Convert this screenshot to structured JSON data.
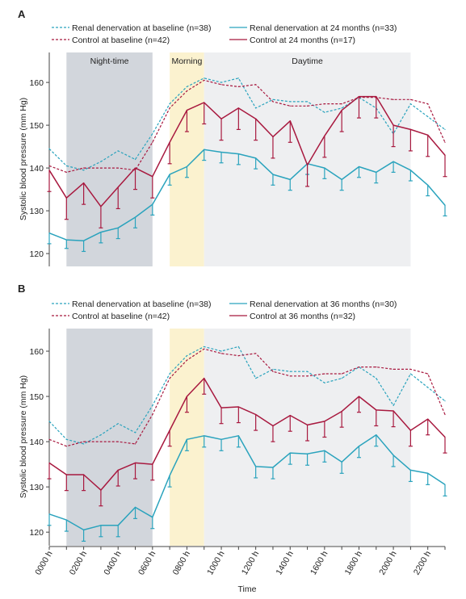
{
  "figure": {
    "xlabel": "Time",
    "x_ticks": [
      "0000 h",
      "0200 h",
      "0400 h",
      "0600 h",
      "0800 h",
      "1000 h",
      "1200 h",
      "1400 h",
      "1600 h",
      "1800 h",
      "2000 h",
      "2200 h"
    ]
  },
  "colors": {
    "denervation": "#2aa3bd",
    "control": "#a8193f",
    "night_shade": "#d2d6dc",
    "morning_shade": "#fbf2cf",
    "day_shade": "#eeeff1"
  },
  "chart_data": [
    {
      "panel": "A",
      "type": "line",
      "ylabel": "Systolic blood pressure (mm Hg)",
      "ylim": [
        117,
        167
      ],
      "y_ticks": [
        120,
        130,
        140,
        150,
        160
      ],
      "x_hours": [
        0,
        1,
        2,
        3,
        4,
        5,
        6,
        7,
        8,
        9,
        10,
        11,
        12,
        13,
        14,
        15,
        16,
        17,
        18,
        19,
        20,
        21,
        22,
        23
      ],
      "periods": [
        {
          "label": "Night-time",
          "start": 1,
          "end": 6
        },
        {
          "label": "Morning",
          "start": 7,
          "end": 9
        },
        {
          "label": "Daytime",
          "start": 9,
          "end": 21
        }
      ],
      "legend": [
        {
          "label": "Renal denervation at baseline (n=38)",
          "color": "#2aa3bd",
          "style": "dashed"
        },
        {
          "label": "Control at baseline (n=42)",
          "color": "#a8193f",
          "style": "dashed"
        },
        {
          "label": "Renal denervation at 24 months (n=33)",
          "color": "#2aa3bd",
          "style": "solid"
        },
        {
          "label": "Control at 24 months (n=17)",
          "color": "#a8193f",
          "style": "solid"
        }
      ],
      "series": [
        {
          "name": "Renal denervation at baseline (n=38)",
          "color": "#2aa3bd",
          "style": "dashed",
          "values": [
            144.5,
            140.5,
            139.5,
            141.5,
            144,
            142,
            148,
            155,
            159,
            161,
            160,
            161,
            154,
            156,
            155.5,
            155.5,
            153,
            154,
            156.5,
            154,
            148,
            155,
            152,
            149
          ]
        },
        {
          "name": "Control at baseline (n=42)",
          "color": "#a8193f",
          "style": "dashed",
          "values": [
            140.5,
            139,
            140,
            140,
            140,
            139.5,
            146,
            154,
            158,
            160.5,
            159.5,
            159,
            159.5,
            155.5,
            154.5,
            154.5,
            155,
            155,
            156.5,
            156.5,
            156,
            156,
            155,
            146
          ]
        },
        {
          "name": "Renal denervation at 24 months (n=33)",
          "color": "#2aa3bd",
          "style": "solid",
          "values": [
            124.8,
            123.2,
            123,
            125,
            126,
            128.5,
            131.5,
            138.5,
            140.3,
            144.3,
            143.7,
            143.3,
            142.3,
            138.5,
            137.3,
            141,
            140,
            137.3,
            140.3,
            139,
            141.5,
            139.5,
            136,
            131.3
          ],
          "error_down": [
            2.5,
            2,
            2.5,
            2.5,
            2.5,
            2.5,
            2.5,
            2.5,
            2.5,
            2.5,
            2.5,
            2.5,
            2.5,
            2.5,
            2.5,
            2.5,
            2.5,
            2.5,
            2.5,
            2.5,
            2.5,
            2.5,
            2.5,
            2.5
          ]
        },
        {
          "name": "Control at 24 months (n=17)",
          "color": "#a8193f",
          "style": "solid",
          "values": [
            139.5,
            133,
            136.5,
            131,
            135.5,
            140,
            138,
            146,
            153.5,
            155.3,
            151.5,
            154,
            151.5,
            147.3,
            151,
            140.7,
            147.5,
            153.5,
            156.7,
            156.7,
            150,
            149,
            147.7,
            143
          ],
          "error_down": [
            5,
            5,
            5,
            5,
            5,
            5,
            5,
            5,
            5,
            5,
            5,
            5,
            5,
            5,
            5,
            5,
            5,
            5,
            5,
            5,
            5,
            5,
            5,
            5
          ]
        }
      ]
    },
    {
      "panel": "B",
      "type": "line",
      "ylabel": "Systolic blood pressure (mm Hg)",
      "ylim": [
        117,
        165
      ],
      "y_ticks": [
        120,
        130,
        140,
        150,
        160
      ],
      "x_hours": [
        0,
        1,
        2,
        3,
        4,
        5,
        6,
        7,
        8,
        9,
        10,
        11,
        12,
        13,
        14,
        15,
        16,
        17,
        18,
        19,
        20,
        21,
        22,
        23
      ],
      "periods": [
        {
          "label": "",
          "start": 1,
          "end": 6
        },
        {
          "label": "",
          "start": 7,
          "end": 9
        },
        {
          "label": "",
          "start": 9,
          "end": 21
        }
      ],
      "legend": [
        {
          "label": "Renal denervation at baseline (n=38)",
          "color": "#2aa3bd",
          "style": "dashed"
        },
        {
          "label": "Control at baseline (n=42)",
          "color": "#a8193f",
          "style": "dashed"
        },
        {
          "label": "Renal denervation at 36 months (n=30)",
          "color": "#2aa3bd",
          "style": "solid"
        },
        {
          "label": "Control at 36 months (n=32)",
          "color": "#a8193f",
          "style": "solid"
        }
      ],
      "series": [
        {
          "name": "Renal denervation at baseline (n=38)",
          "color": "#2aa3bd",
          "style": "dashed",
          "values": [
            144.5,
            140.5,
            139.5,
            141.5,
            144,
            142,
            148,
            155,
            159,
            161,
            160,
            161,
            154,
            156,
            155.5,
            155.5,
            153,
            154,
            156.5,
            154,
            148,
            155,
            152,
            149
          ]
        },
        {
          "name": "Control at baseline (n=42)",
          "color": "#a8193f",
          "style": "dashed",
          "values": [
            140.5,
            139,
            140,
            140,
            140,
            139.5,
            146,
            154,
            158,
            160.5,
            159.5,
            159,
            159.5,
            155.5,
            154.5,
            154.5,
            155,
            155,
            156.5,
            156.5,
            156,
            156,
            155,
            146
          ]
        },
        {
          "name": "Renal denervation at 36 months (n=30)",
          "color": "#2aa3bd",
          "style": "solid",
          "values": [
            124,
            122.7,
            120.5,
            121.5,
            121.5,
            125.5,
            123.3,
            132.5,
            140.5,
            141.3,
            140.5,
            141.3,
            134.5,
            134.3,
            137.5,
            137.3,
            138,
            135.5,
            139,
            141.5,
            137,
            133.7,
            133,
            130.5
          ],
          "error_down": [
            2.5,
            2.5,
            2.5,
            2.5,
            2.5,
            2.5,
            2.5,
            2.5,
            2.5,
            2.5,
            2.5,
            2.5,
            2.5,
            2.5,
            2.5,
            2.5,
            2.5,
            2.5,
            2.5,
            2.5,
            2.5,
            2.5,
            2.5,
            2.5
          ]
        },
        {
          "name": "Control at 36 months (n=32)",
          "color": "#a8193f",
          "style": "solid",
          "values": [
            135.3,
            132.7,
            132.7,
            129.3,
            133.7,
            135.3,
            135,
            142.5,
            150,
            154,
            147.5,
            147.7,
            146,
            143.5,
            145.8,
            143.7,
            144.5,
            146.7,
            150,
            147,
            146.8,
            142.5,
            145,
            141
          ],
          "error_down": [
            3.5,
            3.5,
            3.5,
            3.5,
            3.5,
            3.5,
            3.5,
            3.5,
            3.5,
            3.5,
            3.5,
            3.5,
            3.5,
            3.5,
            3.5,
            3.5,
            3.5,
            3.5,
            3.5,
            3.5,
            3.5,
            3.5,
            3.5,
            3.5
          ]
        }
      ]
    }
  ]
}
